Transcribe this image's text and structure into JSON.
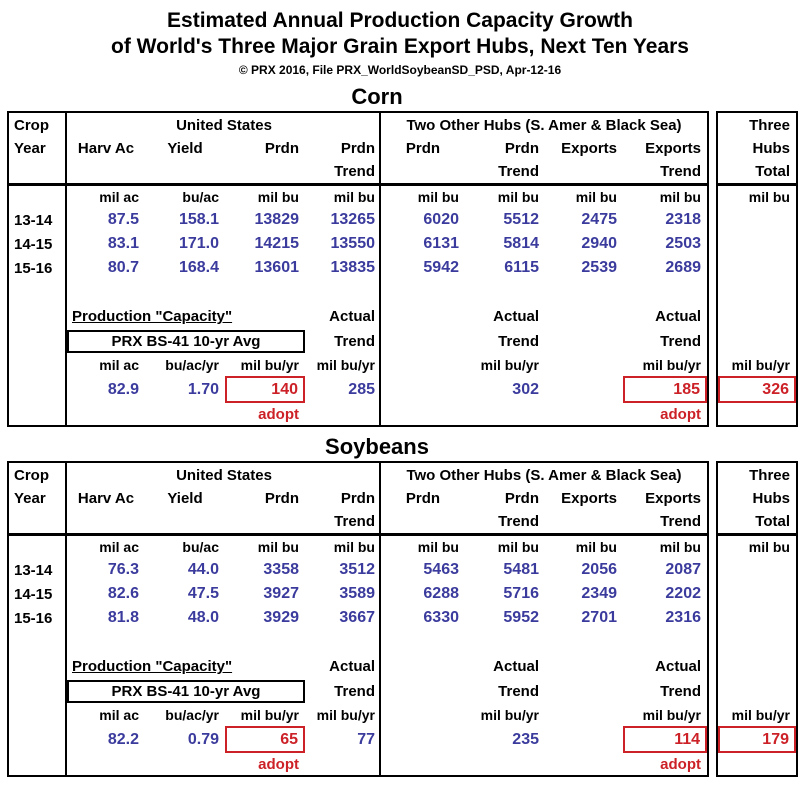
{
  "page": {
    "title_line1": "Estimated Annual Production Capacity Growth",
    "title_line2": "of World's Three Major Grain Export Hubs, Next Ten Years",
    "subtitle": "© PRX 2016, File PRX_WorldSoybeanSD_PSD, Apr-12-16"
  },
  "colors": {
    "data_blue": "#3b3b9d",
    "accent_red": "#cc2127",
    "border_black": "#000000"
  },
  "labels": {
    "crop": "Crop",
    "year": "Year",
    "us_group": "United States",
    "hubs_group": "Two Other Hubs (S. Amer & Black Sea)",
    "three": "Three",
    "hubs": "Hubs",
    "total": "Total",
    "harv_ac": "Harv Ac",
    "yield": "Yield",
    "prdn": "Prdn",
    "exports": "Exports",
    "trend": "Trend",
    "actual": "Actual",
    "adopt": "adopt",
    "capacity_title": "Production \"Capacity\"",
    "prx_method": "PRX BS-41 10-yr Avg",
    "units": {
      "mil_ac": "mil ac",
      "bu_ac": "bu/ac",
      "mil_bu": "mil bu",
      "bu_ac_yr": "bu/ac/yr",
      "mil_bu_yr": "mil bu/yr"
    }
  },
  "corn": {
    "section_title": "Corn",
    "rows": [
      {
        "year": "13-14",
        "harv": "87.5",
        "yld": "158.1",
        "prdn": "13829",
        "prdn_trend": "13265",
        "hub_prdn": "6020",
        "hub_prdn_trend": "5512",
        "exports": "2475",
        "exports_trend": "2318"
      },
      {
        "year": "14-15",
        "harv": "83.1",
        "yld": "171.0",
        "prdn": "14215",
        "prdn_trend": "13550",
        "hub_prdn": "6131",
        "hub_prdn_trend": "5814",
        "exports": "2940",
        "exports_trend": "2503"
      },
      {
        "year": "15-16",
        "harv": "80.7",
        "yld": "168.4",
        "prdn": "13601",
        "prdn_trend": "13835",
        "hub_prdn": "5942",
        "hub_prdn_trend": "6115",
        "exports": "2539",
        "exports_trend": "2689"
      }
    ],
    "capacity": {
      "harv": "82.9",
      "yld": "1.70",
      "prdn_adopted": "140",
      "prdn_trend": "285",
      "hub_prdn_trend": "302",
      "exports_trend_adopted": "185",
      "three_hubs_total": "326"
    }
  },
  "soybeans": {
    "section_title": "Soybeans",
    "rows": [
      {
        "year": "13-14",
        "harv": "76.3",
        "yld": "44.0",
        "prdn": "3358",
        "prdn_trend": "3512",
        "hub_prdn": "5463",
        "hub_prdn_trend": "5481",
        "exports": "2056",
        "exports_trend": "2087"
      },
      {
        "year": "14-15",
        "harv": "82.6",
        "yld": "47.5",
        "prdn": "3927",
        "prdn_trend": "3589",
        "hub_prdn": "6288",
        "hub_prdn_trend": "5716",
        "exports": "2349",
        "exports_trend": "2202"
      },
      {
        "year": "15-16",
        "harv": "81.8",
        "yld": "48.0",
        "prdn": "3929",
        "prdn_trend": "3667",
        "hub_prdn": "6330",
        "hub_prdn_trend": "5952",
        "exports": "2701",
        "exports_trend": "2316"
      }
    ],
    "capacity": {
      "harv": "82.2",
      "yld": "0.79",
      "prdn_adopted": "65",
      "prdn_trend": "77",
      "hub_prdn_trend": "235",
      "exports_trend_adopted": "114",
      "three_hubs_total": "179"
    }
  }
}
